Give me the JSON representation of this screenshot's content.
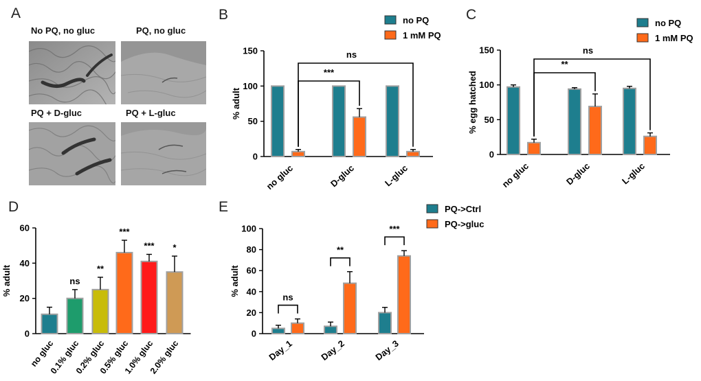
{
  "panel_letters": [
    "A",
    "B",
    "C",
    "D",
    "E"
  ],
  "panel_a": {
    "captions": [
      "No PQ, no gluc",
      "PQ, no gluc",
      "PQ + D-gluc",
      "PQ + L-gluc"
    ]
  },
  "colors": {
    "teal": "#1e7e8e",
    "orange": "#ff6a1a",
    "green": "#1e9c6c",
    "olive": "#c8bc0a",
    "red": "#ff1a1a",
    "tan": "#cf9a55",
    "bar_outline": "#a0a0a0"
  },
  "chart_data": [
    {
      "id": "B",
      "type": "bar",
      "categories": [
        "no gluc",
        "D-gluc",
        "L-gluc"
      ],
      "series": [
        {
          "name": "no PQ",
          "values": [
            100,
            100,
            100
          ],
          "errors": [
            0,
            0,
            0
          ],
          "color": "#1e7e8e"
        },
        {
          "name": "1 mM PQ",
          "values": [
            7,
            56,
            7
          ],
          "errors": [
            3,
            12,
            3
          ],
          "color": "#ff6a1a"
        }
      ],
      "ylabel": "% adult",
      "ylim": [
        0,
        150
      ],
      "yticks": [
        0,
        50,
        100,
        150
      ],
      "legend": "top-right",
      "annotations": [
        {
          "text": "***",
          "from": [
            0,
            1
          ],
          "to": [
            1,
            1
          ]
        },
        {
          "text": "ns",
          "from": [
            0,
            1
          ],
          "to": [
            2,
            1
          ]
        }
      ]
    },
    {
      "id": "C",
      "type": "bar",
      "categories": [
        "no gluc",
        "D-gluc",
        "L-gluc"
      ],
      "series": [
        {
          "name": "no PQ",
          "values": [
            97,
            94,
            95
          ],
          "errors": [
            3,
            2,
            3
          ],
          "color": "#1e7e8e"
        },
        {
          "name": "1 mM PQ",
          "values": [
            17,
            69,
            26
          ],
          "errors": [
            5,
            18,
            5
          ],
          "color": "#ff6a1a"
        }
      ],
      "ylabel": "% egg hatched",
      "ylim": [
        0,
        150
      ],
      "yticks": [
        0,
        50,
        100,
        150
      ],
      "legend": "top-right",
      "annotations": [
        {
          "text": "**",
          "from": [
            0,
            1
          ],
          "to": [
            1,
            1
          ]
        },
        {
          "text": "ns",
          "from": [
            0,
            1
          ],
          "to": [
            2,
            1
          ]
        }
      ]
    },
    {
      "id": "D",
      "type": "bar",
      "categories": [
        "no gluc",
        "0.1% gluc",
        "0.2% gluc",
        "0.5% gluc",
        "1.0% gluc",
        "2.0% gluc"
      ],
      "values": [
        11,
        20,
        25,
        46,
        41,
        35
      ],
      "errors": [
        4,
        5,
        7,
        7,
        4,
        9
      ],
      "colors": [
        "#1e7e8e",
        "#1e9c6c",
        "#c8bc0a",
        "#ff6a1a",
        "#ff1a1a",
        "#cf9a55"
      ],
      "significance": [
        "",
        "ns",
        "**",
        "***",
        "***",
        "*"
      ],
      "ylabel": "% adult",
      "ylim": [
        0,
        60
      ],
      "yticks": [
        0,
        20,
        40,
        60
      ]
    },
    {
      "id": "E",
      "type": "bar",
      "categories": [
        "Day_1",
        "Day_2",
        "Day_3"
      ],
      "series": [
        {
          "name": "PQ->Ctrl",
          "values": [
            5,
            7,
            20
          ],
          "errors": [
            3,
            4,
            5
          ],
          "color": "#1e7e8e"
        },
        {
          "name": "PQ->gluc",
          "values": [
            10,
            48,
            74
          ],
          "errors": [
            4,
            11,
            5
          ],
          "color": "#ff6a1a"
        }
      ],
      "ylabel": "% adult",
      "ylim": [
        0,
        100
      ],
      "yticks": [
        0,
        20,
        40,
        60,
        80,
        100
      ],
      "legend": "top-right",
      "annotations": [
        {
          "text": "ns",
          "group": 0
        },
        {
          "text": "**",
          "group": 1
        },
        {
          "text": "***",
          "group": 2
        }
      ]
    }
  ]
}
